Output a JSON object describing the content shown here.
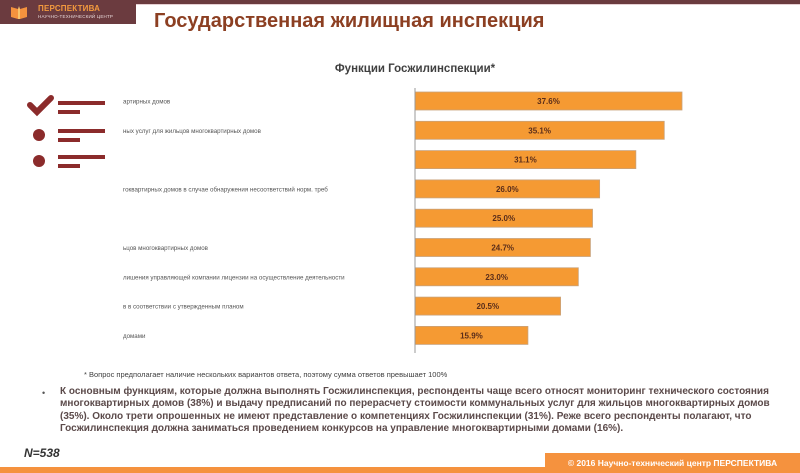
{
  "header": {
    "logo_name": "ПЕРСПЕКТИВА",
    "logo_subtitle": "НАУЧНО-ТЕХНИЧЕСКИЙ ЦЕНТР",
    "page_title": "Государственная жилищная инспекция"
  },
  "colors": {
    "brand_brown": "#6b3b3f",
    "accent_orange": "#f5923e",
    "bar_fill": "#f59a33",
    "title_color": "#8c3f22",
    "icon_color": "#8b2b2b"
  },
  "icons": [
    "check-list-icon"
  ],
  "chart_data": {
    "type": "bar",
    "orientation": "horizontal",
    "title": "Функции Госжилинспекции*",
    "categories": [
      "артирных домов",
      "ных услуг для жильцов многоквартирных домов",
      "",
      "гоквартирных домов в случае обнаружения несоответствий норм. треб",
      "",
      "ьцов многоквартирных домов",
      "лишения управляющей компании лицензии на осуществление деятельности",
      "в в соответствии с утвержденным планом",
      "домами"
    ],
    "values": [
      37.6,
      35.1,
      31.1,
      26.0,
      25.0,
      24.7,
      23.0,
      20.5,
      15.9
    ],
    "data_labels": [
      "37.6%",
      "35.1%",
      "31.1%",
      "26.0%",
      "25.0%",
      "24.7%",
      "23.0%",
      "20.5%",
      "15.9%"
    ],
    "xlim": [
      0,
      40
    ],
    "unit": "%",
    "grid": false,
    "legend": "none"
  },
  "footnote": "* Вопрос предполагает наличие нескольких вариантов ответа, поэтому сумма ответов превышает 100%",
  "summary": {
    "bullet": "•",
    "text": "К основным функциям, которые должна выполнять Госжилинспекция, респонденты чаще всего относят мониторинг технического состояния многоквартирных домов (38%) и выдачу предписаний по перерасчету стоимости коммунальных услуг для жильцов многоквартирных домов (35%). Около трети опрошенных не имеют представление о компетенциях Госжилинспекции (31%). Реже всего респонденты полагают, что Госжилинспекция должна заниматься проведением конкурсов на управление многоквартирными домами (16%)."
  },
  "sample_size": "N=538",
  "footer": {
    "copyright": "© 2016 Научно-технический центр ПЕРСПЕКТИВА"
  }
}
